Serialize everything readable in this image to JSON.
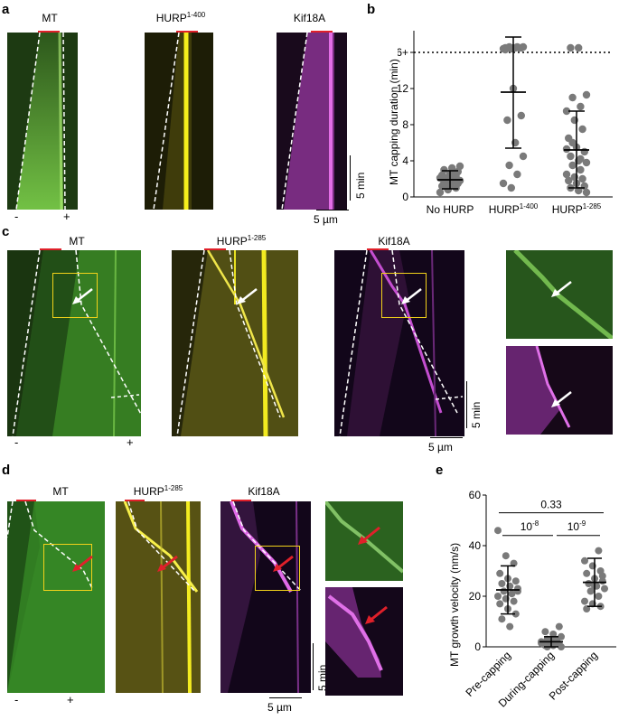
{
  "panels": {
    "a": {
      "label": "a",
      "channels": [
        {
          "name": "MT",
          "sup": ""
        },
        {
          "name": "HURP",
          "sup": "1-400"
        },
        {
          "name": "Kif18A",
          "sup": ""
        }
      ],
      "minus": "-",
      "plus": "+",
      "time_scale": "5 min",
      "space_scale": "5 µm"
    },
    "b": {
      "label": "b",
      "ylabel": "MT capping duration (min)",
      "ytick_top": "16+"
    },
    "c": {
      "label": "c",
      "channels": [
        {
          "name": "MT",
          "sup": ""
        },
        {
          "name": "HURP",
          "sup": "1-285"
        },
        {
          "name": "Kif18A",
          "sup": ""
        }
      ],
      "minus": "-",
      "plus": "+",
      "time_scale": "5 min",
      "space_scale": "5 µm"
    },
    "d": {
      "label": "d",
      "channels": [
        {
          "name": "MT",
          "sup": ""
        },
        {
          "name": "HURP",
          "sup": "1-285"
        },
        {
          "name": "Kif18A",
          "sup": ""
        }
      ],
      "minus": "-",
      "plus": "+",
      "time_scale": "5 min",
      "space_scale": "5 µm"
    },
    "e": {
      "label": "e",
      "ylabel": "MT growth velocity (nm/s)",
      "pvals": {
        "top": "0.33",
        "left_base": "10",
        "left_exp": "-8",
        "right_base": "10",
        "right_exp": "-9"
      }
    }
  },
  "colors": {
    "mt": "#3fae2a",
    "hurp": "#e6e000",
    "kif18a": "#c13fc8",
    "dash": "#ffffff",
    "redbar": "#e0202a",
    "box": "#f2d21a",
    "arrow_white": "#ffffff",
    "arrow_red": "#e0202a",
    "dot": "#7a7a7a"
  },
  "chart_data": [
    {
      "type": "scatter",
      "panel": "b",
      "title": "",
      "ylabel": "MT capping duration (min)",
      "categories": [
        "No HURP",
        "HURP1-400",
        "HURP1-285"
      ],
      "category_labels": [
        {
          "base": "No HURP",
          "sup": ""
        },
        {
          "base": "HURP",
          "sup": "1-400"
        },
        {
          "base": "HURP",
          "sup": "1-285"
        }
      ],
      "yticks": [
        0,
        4,
        8,
        12,
        16
      ],
      "ytick_labels": [
        "0",
        "4",
        "8",
        "12",
        "16+"
      ],
      "ylim": [
        0,
        18
      ],
      "reference_line": {
        "y": 16,
        "style": "dotted"
      },
      "summary": [
        {
          "mean": 1.9,
          "sd_low": 0.9,
          "sd_high": 2.9
        },
        {
          "mean": 11.6,
          "sd_low": 5.4,
          "sd_high": 17.7
        },
        {
          "mean": 5.2,
          "sd_low": 1.0,
          "sd_high": 9.5
        }
      ],
      "points": [
        [
          0.5,
          0.8,
          1.0,
          1.2,
          1.3,
          1.5,
          1.6,
          1.7,
          1.8,
          1.9,
          2.0,
          2.1,
          2.2,
          2.3,
          2.4,
          2.6,
          2.8,
          3.0,
          3.2,
          3.4,
          1.1,
          2.5
        ],
        [
          16.5,
          16.5,
          16.5,
          16.5,
          16.5,
          16.6,
          16.6,
          16.6,
          16.4,
          16.4,
          16.5,
          16.3,
          12.0,
          9.0,
          8.5,
          6.0,
          4.5,
          3.5,
          2.5,
          1.5,
          1.0
        ],
        [
          16.5,
          16.5,
          11.3,
          11.0,
          10.0,
          9.5,
          8.5,
          7.5,
          6.5,
          5.5,
          5.0,
          4.5,
          4.0,
          3.8,
          3.5,
          3.0,
          2.5,
          2.2,
          2.0,
          1.8,
          1.5,
          1.2,
          1.0,
          0.7,
          0.5,
          6.0,
          4.2,
          5.3
        ]
      ]
    },
    {
      "type": "scatter",
      "panel": "e",
      "title": "",
      "ylabel": "MT growth velocity (nm/s)",
      "categories": [
        "Pre-capping",
        "During-capping",
        "Post-capping"
      ],
      "yticks": [
        0,
        20,
        40,
        60
      ],
      "ylim": [
        0,
        60
      ],
      "summary": [
        {
          "mean": 22.5,
          "sd_low": 13.0,
          "sd_high": 32.0
        },
        {
          "mean": 2.0,
          "sd_low": 0.0,
          "sd_high": 4.0
        },
        {
          "mean": 25.5,
          "sd_low": 16.0,
          "sd_high": 35.0
        }
      ],
      "points": [
        [
          46,
          36,
          33,
          29,
          27,
          26,
          25,
          24,
          23,
          22,
          21,
          20,
          19,
          18,
          17,
          15,
          13,
          11,
          8,
          22
        ],
        [
          8,
          6,
          5,
          4,
          3,
          3,
          2,
          2,
          2,
          1,
          1,
          1,
          0.5,
          0.5,
          0,
          0,
          3,
          1.5
        ],
        [
          38,
          34,
          32,
          30,
          29,
          27,
          26,
          25,
          24,
          23,
          22,
          20,
          18,
          17,
          16,
          15,
          24,
          28
        ]
      ],
      "comparisons": [
        {
          "groups": [
            0,
            2
          ],
          "p": "0.33"
        },
        {
          "groups": [
            0,
            1
          ],
          "p": "10^-8"
        },
        {
          "groups": [
            1,
            2
          ],
          "p": "10^-9"
        }
      ]
    }
  ]
}
